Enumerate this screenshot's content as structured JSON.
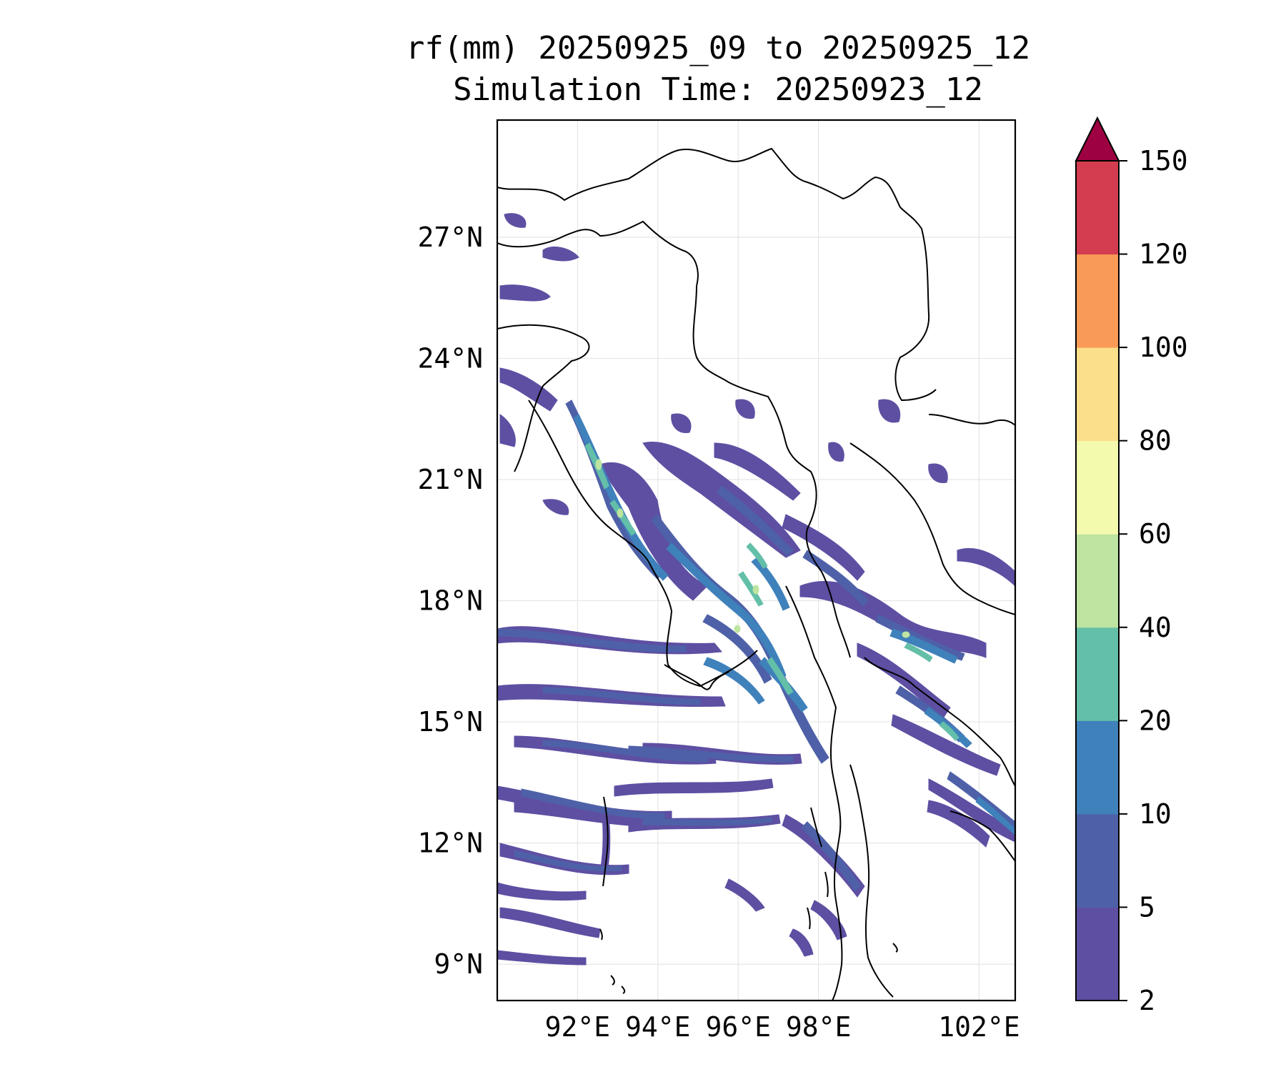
{
  "title": {
    "line1": "rf(mm) 20250925_09 to 20250925_12",
    "line2": "Simulation Time: 20250923_12"
  },
  "map": {
    "lon_range": [
      90.0,
      102.9
    ],
    "lat_range": [
      8.1,
      29.9
    ],
    "lon_ticks": [
      92,
      94,
      96,
      98,
      102
    ],
    "lon_tick_labels": [
      "92°E",
      "94°E",
      "96°E",
      "98°E",
      "102°E"
    ],
    "lat_ticks": [
      9,
      12,
      15,
      18,
      21,
      24,
      27
    ],
    "lat_tick_labels": [
      "9°N",
      "12°N",
      "15°N",
      "18°N",
      "21°N",
      "24°N",
      "27°N"
    ],
    "grid": true
  },
  "colorbar": {
    "levels": [
      2,
      5,
      10,
      20,
      40,
      60,
      80,
      100,
      120,
      150
    ],
    "labels": [
      "2",
      "5",
      "10",
      "20",
      "40",
      "60",
      "80",
      "100",
      "120",
      "150"
    ],
    "colors": [
      "#5e4fa2",
      "#4e61a8",
      "#3f81bb",
      "#64bfa8",
      "#bde4a0",
      "#f3faad",
      "#fcdf8a",
      "#f99b57",
      "#d43d4f"
    ],
    "extend_color": "#9e0142",
    "extend": "max"
  },
  "rain_field": {
    "description": "rainfall contour bands over Myanmar / Bay of Bengal",
    "bands": [
      {
        "level": "2-5",
        "color": "#5e4fa2"
      },
      {
        "level": "5-10",
        "color": "#4e61a8"
      },
      {
        "level": "10-20",
        "color": "#3f81bb"
      },
      {
        "level": "20-40",
        "color": "#64bfa8"
      },
      {
        "level": "40-60",
        "color": "#bde4a0"
      }
    ]
  }
}
